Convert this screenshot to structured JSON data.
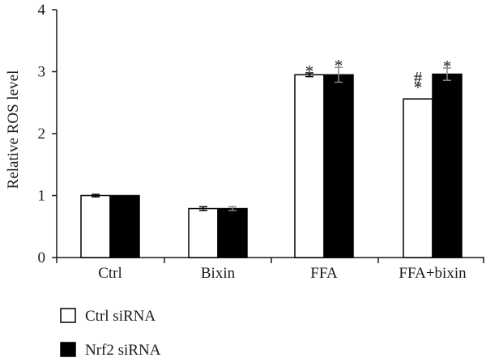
{
  "chart_data": {
    "type": "bar",
    "ylabel": "Relative ROS level",
    "xlabel": "",
    "ylim": [
      0,
      4
    ],
    "yticks": [
      "0",
      "1",
      "2",
      "3",
      "4"
    ],
    "categories": [
      "Ctrl",
      "Bixin",
      "FFA",
      "FFA+bixin"
    ],
    "series": [
      {
        "name": "Ctrl siRNA",
        "fill": "#ffffff",
        "values": [
          1.0,
          0.79,
          2.95,
          2.56
        ],
        "errors": [
          0.02,
          0.03,
          0.03,
          0.0
        ]
      },
      {
        "name": "Nrf2 siRNA",
        "fill": "#000000",
        "values": [
          1.0,
          0.79,
          2.95,
          2.96
        ],
        "errors": [
          0.0,
          0.03,
          0.12,
          0.1
        ]
      }
    ],
    "annotations": [
      {
        "category": 2,
        "series": 0,
        "text": "*"
      },
      {
        "category": 2,
        "series": 1,
        "text": "*"
      },
      {
        "category": 3,
        "series": 0,
        "text": "#"
      },
      {
        "category": 3,
        "series": 0,
        "text": "*"
      },
      {
        "category": 3,
        "series": 1,
        "text": "*"
      }
    ],
    "legend": "bottom-left",
    "grid": false,
    "colors": {
      "axis": "#1a1a1a",
      "bar_stroke": "#000000"
    }
  }
}
